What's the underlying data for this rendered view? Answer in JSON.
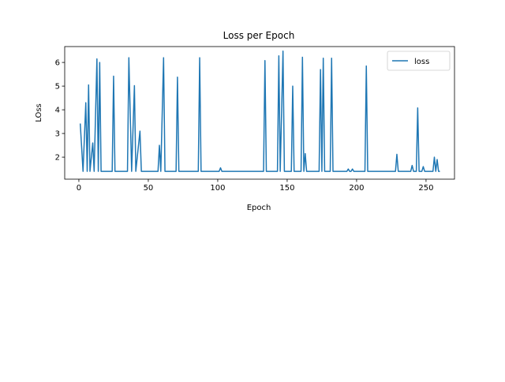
{
  "chart_data": {
    "type": "line",
    "title": "Loss per Epoch",
    "x_label": "Epoch",
    "y_label": "LOss",
    "x": [
      1,
      3,
      5,
      6,
      7,
      8,
      10,
      11,
      13,
      14,
      15,
      16,
      24,
      25,
      26,
      35,
      36,
      38,
      40,
      41,
      44,
      45,
      57,
      58,
      59,
      61,
      62,
      70,
      71,
      72,
      86,
      87,
      88,
      101,
      102,
      103,
      133,
      134,
      135,
      143,
      144,
      145,
      147,
      148,
      153,
      154,
      155,
      160,
      161,
      162,
      163,
      164,
      173,
      174,
      175,
      176,
      177,
      181,
      182,
      183,
      193,
      194,
      195,
      196,
      197,
      198,
      206,
      207,
      208,
      228,
      229,
      230,
      239,
      240,
      241,
      243,
      244,
      245,
      247,
      248,
      249,
      255,
      256,
      257,
      258,
      259,
      260
    ],
    "series": [
      {
        "name": "loss",
        "color": "#1f77b4",
        "values": [
          3.42,
          1.4,
          4.3,
          1.4,
          5.05,
          1.4,
          2.6,
          1.4,
          6.15,
          1.4,
          6.0,
          1.4,
          1.4,
          5.42,
          1.4,
          1.4,
          6.2,
          1.4,
          5.02,
          1.4,
          3.1,
          1.4,
          1.4,
          2.5,
          1.4,
          6.2,
          1.4,
          1.4,
          5.38,
          1.4,
          1.4,
          6.2,
          1.4,
          1.4,
          1.55,
          1.4,
          1.4,
          6.08,
          1.4,
          1.4,
          6.28,
          1.4,
          6.48,
          1.4,
          1.4,
          5.0,
          1.4,
          1.4,
          6.22,
          1.4,
          2.15,
          1.4,
          1.4,
          5.7,
          1.4,
          6.18,
          1.4,
          1.4,
          6.18,
          1.4,
          1.4,
          1.5,
          1.4,
          1.4,
          1.5,
          1.4,
          1.4,
          5.85,
          1.4,
          1.4,
          2.12,
          1.4,
          1.4,
          1.65,
          1.4,
          1.4,
          4.08,
          1.4,
          1.4,
          1.6,
          1.4,
          1.4,
          2.0,
          1.4,
          1.9,
          1.4,
          1.4
        ]
      }
    ],
    "xlim": [
      -10.2,
      270.5
    ],
    "ylim": [
      1.07,
      6.67
    ],
    "xticks": [
      0,
      50,
      100,
      150,
      200,
      250
    ],
    "yticks": [
      2,
      3,
      4,
      5,
      6
    ],
    "legend": "upper right"
  }
}
